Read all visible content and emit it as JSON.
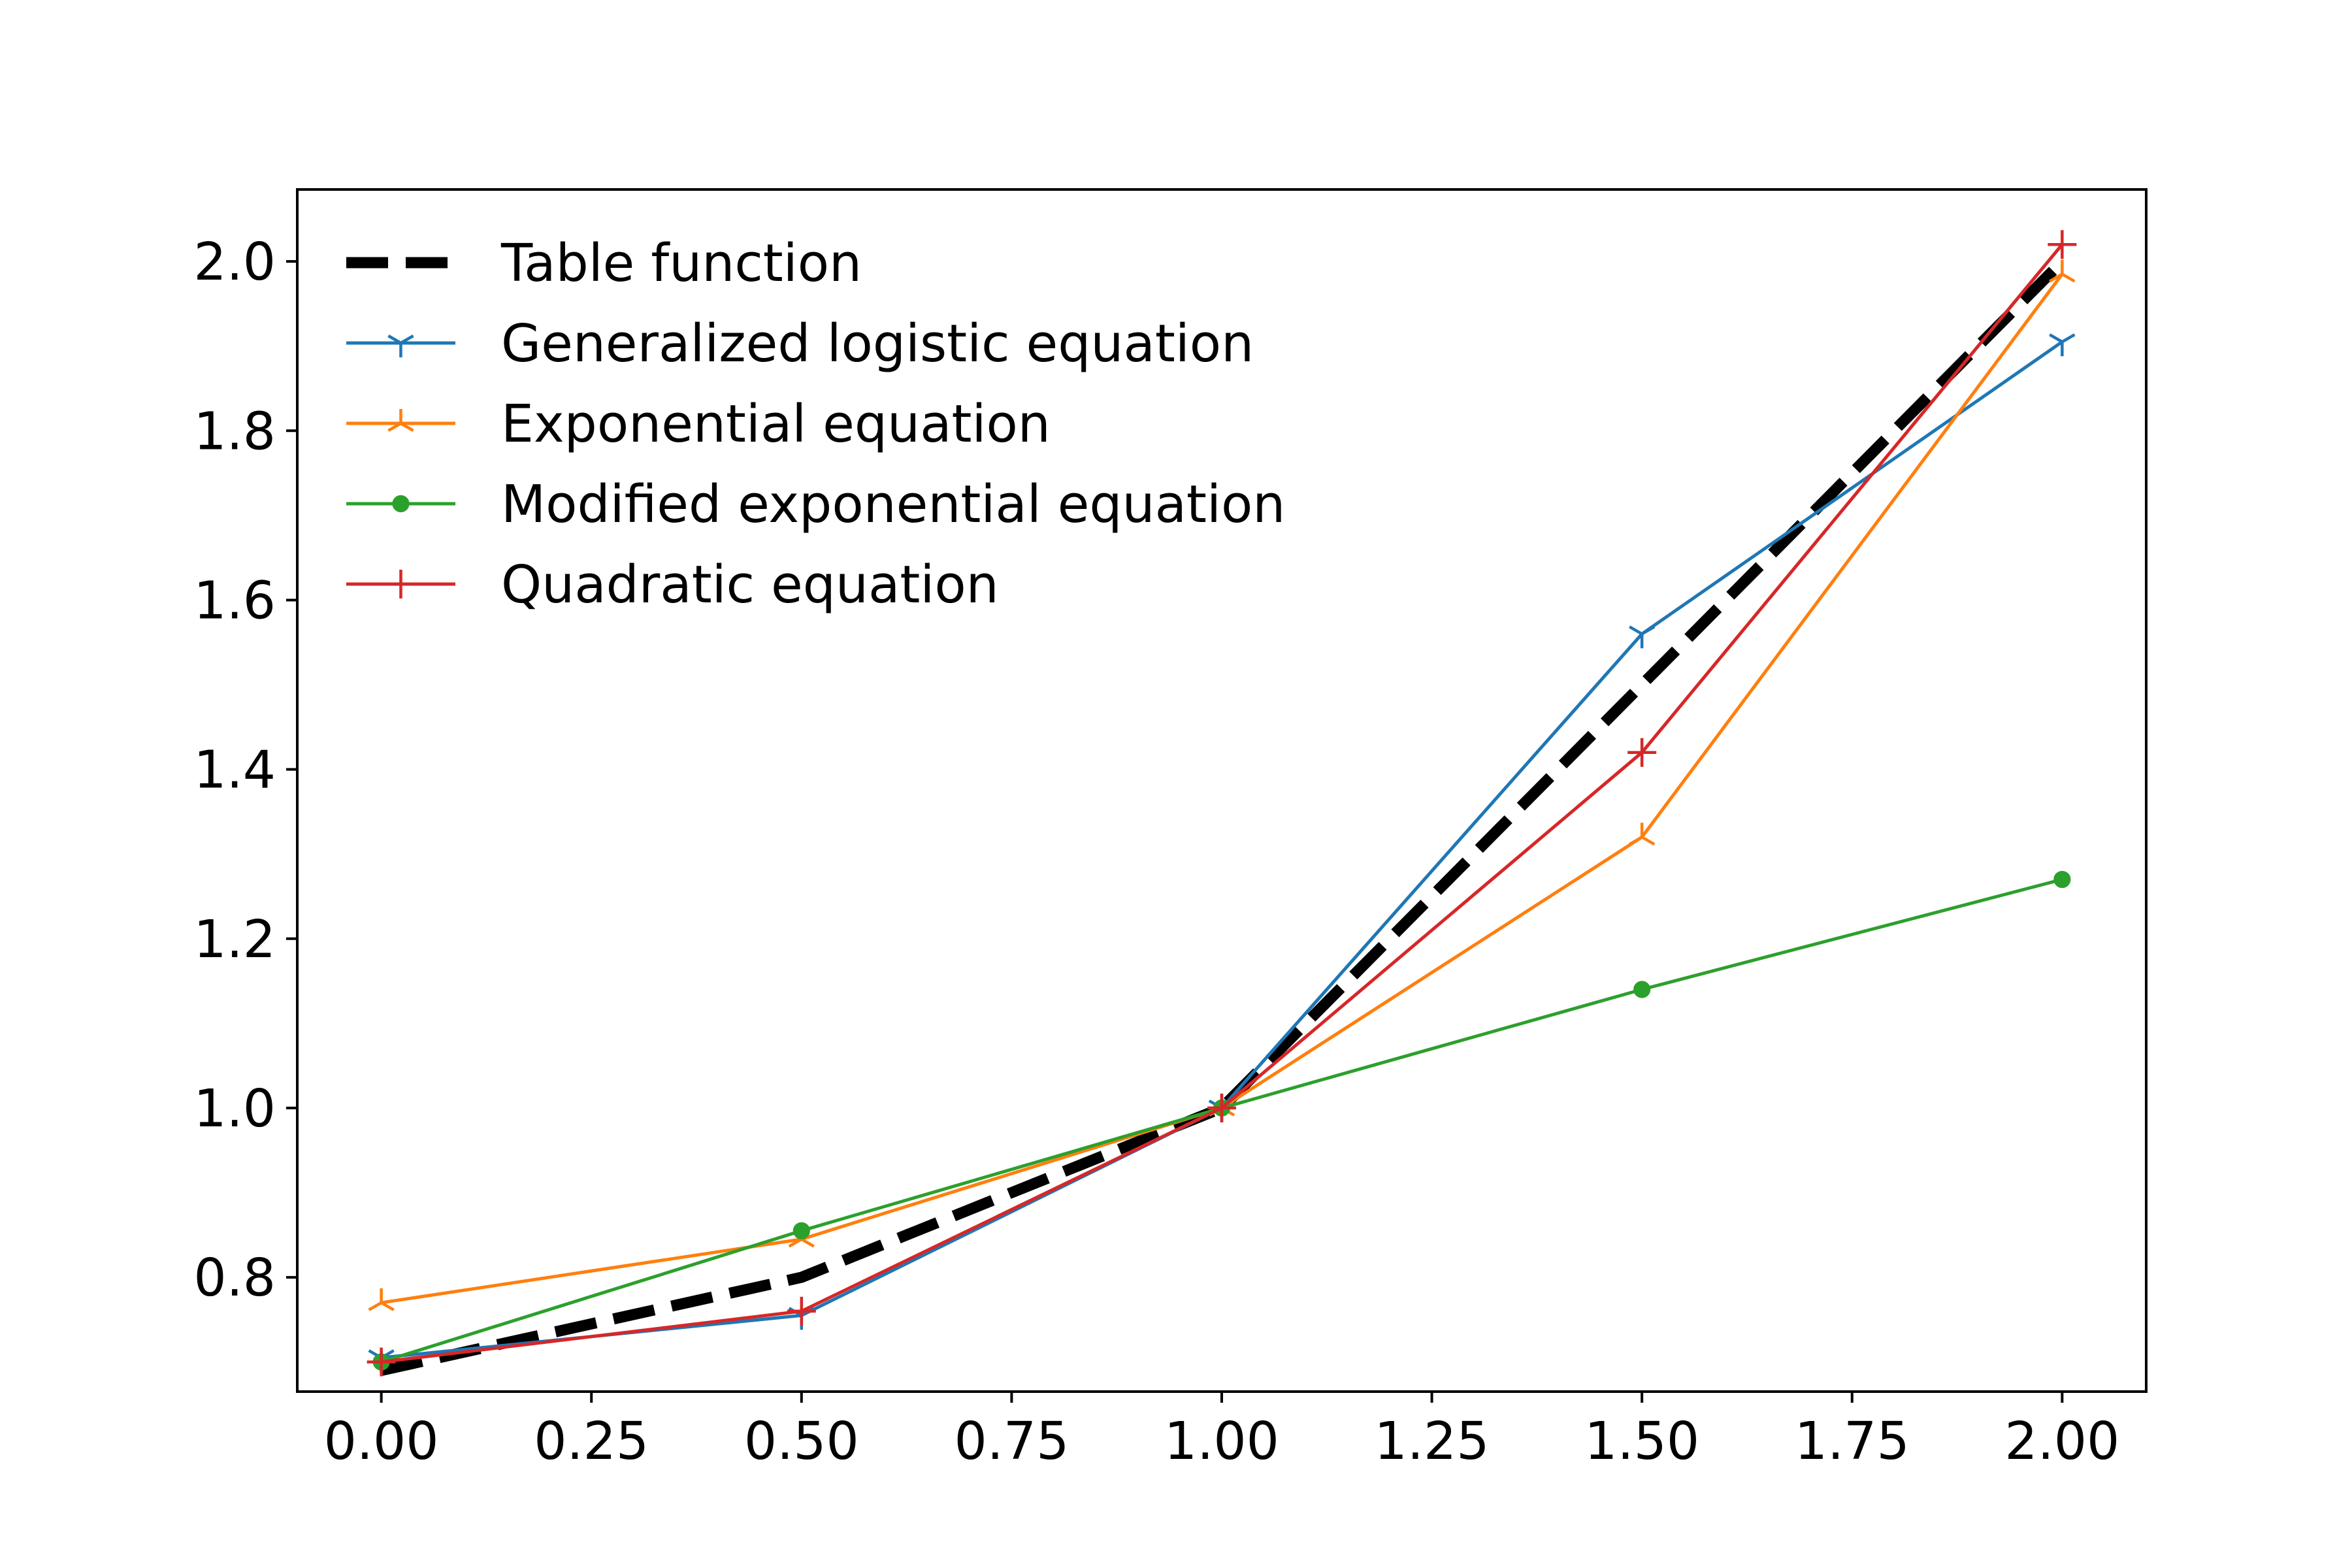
{
  "chart_data": {
    "type": "line",
    "title": "",
    "xlabel": "",
    "ylabel": "",
    "xlim": [
      -0.1,
      2.1
    ],
    "ylim": [
      0.665,
      2.085
    ],
    "x_ticks": [
      "0.00",
      "0.25",
      "0.50",
      "0.75",
      "1.00",
      "1.25",
      "1.50",
      "1.75",
      "2.00"
    ],
    "x_tick_values": [
      0,
      0.25,
      0.5,
      0.75,
      1.0,
      1.25,
      1.5,
      1.75,
      2.0
    ],
    "y_ticks": [
      "0.8",
      "1.0",
      "1.2",
      "1.4",
      "1.6",
      "1.8",
      "2.0"
    ],
    "y_tick_values": [
      0.8,
      1.0,
      1.2,
      1.4,
      1.6,
      1.8,
      2.0
    ],
    "grid": false,
    "legend_position": "upper-left",
    "x": [
      0,
      0.5,
      1.0,
      1.5,
      2.0
    ],
    "series": [
      {
        "name": "Table function",
        "values": [
          0.69,
          0.8,
          1.0,
          1.5,
          2.0
        ],
        "color": "#000000",
        "marker": "none",
        "style": "dashed"
      },
      {
        "name": "Generalized logistic equation",
        "values": [
          0.705,
          0.755,
          1.0,
          1.56,
          1.905
        ],
        "color": "#1f77b4",
        "marker": "tri-down",
        "style": "solid"
      },
      {
        "name": "Exponential equation",
        "values": [
          0.77,
          0.845,
          1.0,
          1.32,
          1.985
        ],
        "color": "#ff7f0e",
        "marker": "tri-up",
        "style": "solid"
      },
      {
        "name": "Modified exponential equation",
        "values": [
          0.7,
          0.855,
          1.0,
          1.14,
          1.27
        ],
        "color": "#2ca02c",
        "marker": "circle",
        "style": "solid"
      },
      {
        "name": "Quadratic equation",
        "values": [
          0.7,
          0.76,
          1.0,
          1.42,
          2.02
        ],
        "color": "#d62728",
        "marker": "plus",
        "style": "solid"
      }
    ]
  }
}
